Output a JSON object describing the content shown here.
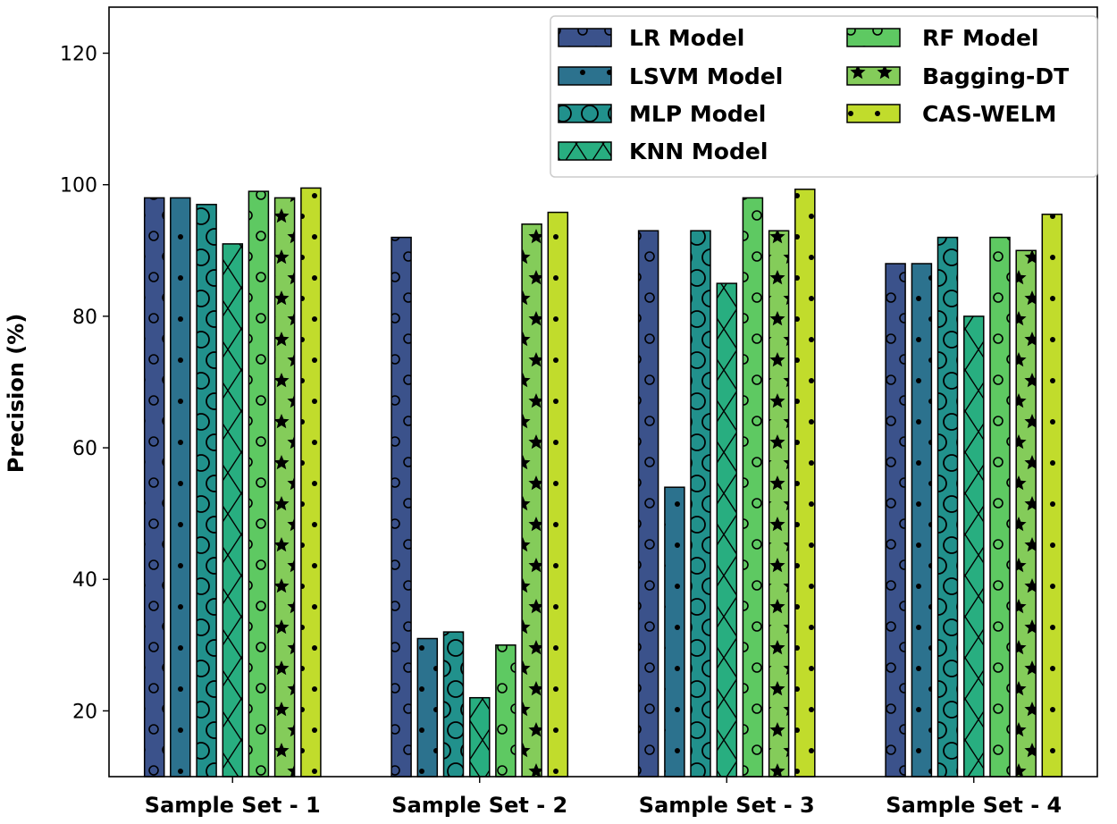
{
  "chart_data": {
    "type": "bar",
    "title": "",
    "xlabel": "",
    "ylabel": "Precision (%)",
    "ylim": [
      10,
      127
    ],
    "yticks": [
      "20",
      "40",
      "60",
      "80",
      "100",
      "120"
    ],
    "grid": false,
    "legend_position": "top-right",
    "categories": [
      "Sample Set - 1",
      "Sample Set - 2",
      "Sample Set - 3",
      "Sample Set - 4"
    ],
    "series": [
      {
        "name": "LR Model",
        "color": "#3b528b",
        "pattern": "circles",
        "values": [
          98,
          92,
          93,
          88
        ]
      },
      {
        "name": "LSVM Model",
        "color": "#2c728e",
        "pattern": "dots",
        "values": [
          98,
          31,
          54,
          88
        ]
      },
      {
        "name": "MLP Model",
        "color": "#21918c",
        "pattern": "big-circles",
        "values": [
          97,
          32,
          93,
          92
        ]
      },
      {
        "name": "KNN Model",
        "color": "#28ae80",
        "pattern": "cross",
        "values": [
          91,
          22,
          85,
          80
        ]
      },
      {
        "name": "RF Model",
        "color": "#5ec962",
        "pattern": "circles",
        "values": [
          99,
          30,
          98,
          92
        ]
      },
      {
        "name": "Bagging-DT",
        "color": "#84cc5a",
        "pattern": "stars",
        "values": [
          98,
          94,
          93,
          90
        ]
      },
      {
        "name": "CAS-WELM",
        "color": "#c1dc2c",
        "pattern": "dots",
        "values": [
          99.5,
          95.8,
          99.3,
          95.5
        ]
      }
    ]
  }
}
